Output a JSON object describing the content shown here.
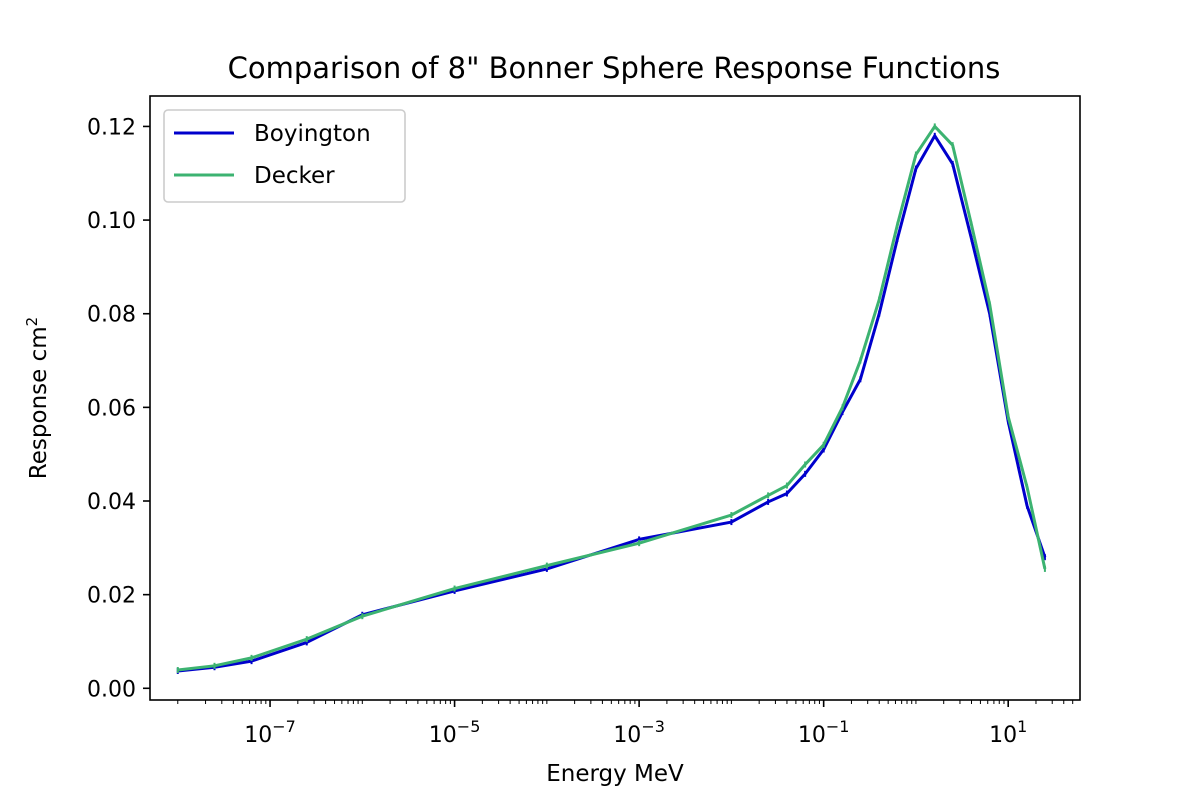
{
  "chart_data": {
    "type": "line",
    "title": "Comparison of 8\" Bonner Sphere Response Functions",
    "xlabel": "Energy MeV",
    "ylabel": "Response cm",
    "ylabel_superscript": "2",
    "x_scale": "log",
    "xlim": [
      5e-09,
      60
    ],
    "ylim": [
      -0.0025,
      0.1265
    ],
    "x_ticks": [
      {
        "value": 1e-07,
        "base": "10",
        "exp": "−7"
      },
      {
        "value": 1e-05,
        "base": "10",
        "exp": "−5"
      },
      {
        "value": 0.001,
        "base": "10",
        "exp": "−3"
      },
      {
        "value": 0.1,
        "base": "10",
        "exp": "−1"
      },
      {
        "value": 10,
        "base": "10",
        "exp": "1"
      }
    ],
    "y_ticks": [
      {
        "value": 0.0,
        "label": "0.00"
      },
      {
        "value": 0.02,
        "label": "0.02"
      },
      {
        "value": 0.04,
        "label": "0.04"
      },
      {
        "value": 0.06,
        "label": "0.06"
      },
      {
        "value": 0.08,
        "label": "0.08"
      },
      {
        "value": 0.1,
        "label": "0.10"
      },
      {
        "value": 0.12,
        "label": "0.12"
      }
    ],
    "grid": false,
    "legend_position": "top-left",
    "series": [
      {
        "name": "Boyington",
        "color": "#0000cc",
        "x": [
          1e-08,
          2.5e-08,
          6.3e-08,
          2.5e-07,
          1e-06,
          1e-05,
          0.0001,
          0.001,
          0.01,
          0.025,
          0.04,
          0.063,
          0.1,
          0.16,
          0.25,
          0.4,
          0.63,
          1.0,
          1.6,
          2.5,
          4.0,
          6.3,
          10,
          16,
          25
        ],
        "y": [
          0.0037,
          0.0045,
          0.0058,
          0.0098,
          0.0157,
          0.0208,
          0.0255,
          0.0318,
          0.0355,
          0.0398,
          0.0416,
          0.0458,
          0.051,
          0.059,
          0.066,
          0.08,
          0.096,
          0.111,
          0.118,
          0.112,
          0.096,
          0.08,
          0.057,
          0.039,
          0.028
        ]
      },
      {
        "name": "Decker",
        "color": "#3cb371",
        "x": [
          1e-08,
          2.5e-08,
          6.3e-08,
          2.5e-07,
          1e-06,
          1e-05,
          0.0001,
          0.001,
          0.01,
          0.025,
          0.04,
          0.063,
          0.1,
          0.16,
          0.25,
          0.4,
          0.63,
          1.0,
          1.6,
          2.5,
          4.0,
          6.3,
          10,
          16,
          25
        ],
        "y": [
          0.0039,
          0.0048,
          0.0065,
          0.0105,
          0.0154,
          0.0213,
          0.0262,
          0.031,
          0.037,
          0.0412,
          0.0433,
          0.0478,
          0.052,
          0.06,
          0.07,
          0.083,
          0.099,
          0.114,
          0.12,
          0.116,
          0.099,
          0.082,
          0.058,
          0.043,
          0.0255
        ]
      }
    ]
  }
}
